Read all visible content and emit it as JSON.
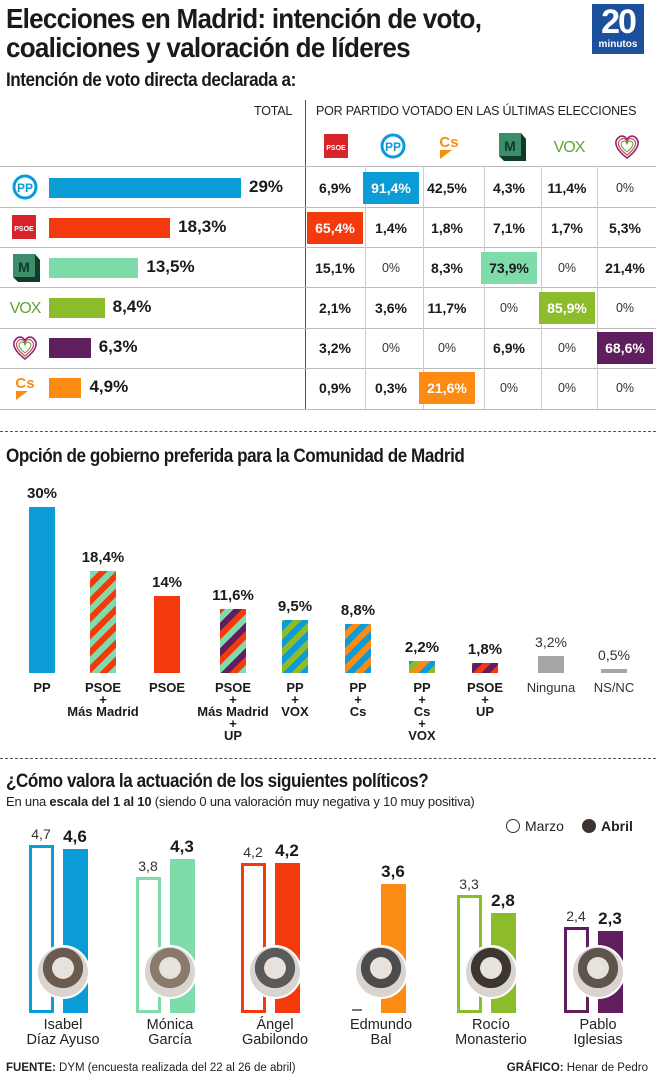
{
  "header": {
    "title_line1": "Elecciones en Madrid: intención de voto,",
    "title_line2": "coaliciones y valoración de líderes",
    "logo_number": "20",
    "logo_word": "minutos"
  },
  "colors": {
    "PP": "#0b9bd7",
    "PSOE": "#f43a0c",
    "MasMadrid": "#7ddcaa",
    "VOX": "#8cbb2c",
    "UP": "#5f1e5e",
    "Cs": "#fb8b12",
    "Ninguna": "#a6a6a6",
    "NSNC": "#a6a6a6"
  },
  "chart_data": [
    {
      "type": "table",
      "title": "Intención de voto directa declarada a:",
      "total_header": "TOTAL",
      "by_party_header": "POR PARTIDO VOTADO EN LAS ÚLTIMAS ELECCIONES",
      "columns": [
        {
          "party": "PSOE",
          "icon": "psoe-logo-icon"
        },
        {
          "party": "PP",
          "icon": "pp-logo-icon"
        },
        {
          "party": "Cs",
          "icon": "cs-logo-icon"
        },
        {
          "party": "Más Madrid",
          "icon": "mas-madrid-logo-icon"
        },
        {
          "party": "VOX",
          "icon": "vox-logo-icon"
        },
        {
          "party": "Unidas Podemos",
          "icon": "podemos-heart-logo-icon"
        }
      ],
      "rows": [
        {
          "party": "PP",
          "icon": "pp-logo-icon",
          "color_key": "PP",
          "total": 29,
          "total_label": "29%",
          "cells": [
            "6,9%",
            "91,4%",
            "42,5%",
            "4,3%",
            "11,4%",
            "0%"
          ],
          "highlight": 1
        },
        {
          "party": "PSOE",
          "icon": "psoe-logo-icon",
          "color_key": "PSOE",
          "total": 18.3,
          "total_label": "18,3%",
          "cells": [
            "65,4%",
            "1,4%",
            "1,8%",
            "7,1%",
            "1,7%",
            "5,3%"
          ],
          "highlight": 0
        },
        {
          "party": "Más Madrid",
          "icon": "mas-madrid-logo-icon",
          "color_key": "MasMadrid",
          "total": 13.5,
          "total_label": "13,5%",
          "cells": [
            "15,1%",
            "0%",
            "8,3%",
            "73,9%",
            "0%",
            "21,4%"
          ],
          "highlight": 3
        },
        {
          "party": "VOX",
          "icon": "vox-logo-icon",
          "color_key": "VOX",
          "total": 8.4,
          "total_label": "8,4%",
          "cells": [
            "2,1%",
            "3,6%",
            "11,7%",
            "0%",
            "85,9%",
            "0%"
          ],
          "highlight": 4
        },
        {
          "party": "Unidas Podemos",
          "icon": "podemos-heart-logo-icon",
          "color_key": "UP",
          "total": 6.3,
          "total_label": "6,3%",
          "cells": [
            "3,2%",
            "0%",
            "0%",
            "6,9%",
            "0%",
            "68,6%"
          ],
          "highlight": 5
        },
        {
          "party": "Cs",
          "icon": "cs-logo-icon",
          "color_key": "Cs",
          "total": 4.9,
          "total_label": "4,9%",
          "cells": [
            "0,9%",
            "0,3%",
            "21,6%",
            "0%",
            "0%",
            "0%"
          ],
          "highlight": 2
        }
      ]
    },
    {
      "type": "bar",
      "title": "Opción de gobierno preferida para la Comunidad de Madrid",
      "categories": [
        "PP",
        "PSOE\n+\nMás Madrid",
        "PSOE",
        "PSOE\n+\nMás Madrid\n+\nUP",
        "PP\n+\nVOX",
        "PP\n+\nCs",
        "PP\n+\nCs\n+\nVOX",
        "PSOE\n+\nUP",
        "Ninguna",
        "NS/NC"
      ],
      "values": [
        30,
        18.4,
        14,
        11.6,
        9.5,
        8.8,
        2.2,
        1.8,
        3.2,
        0.5
      ],
      "value_labels": [
        "30%",
        "18,4%",
        "14%",
        "11,6%",
        "9,5%",
        "8,8%",
        "2,2%",
        "1,8%",
        "3,2%",
        "0,5%"
      ],
      "stripes": [
        [
          "PP"
        ],
        [
          "MasMadrid",
          "PSOE"
        ],
        [
          "PSOE"
        ],
        [
          "MasMadrid",
          "PSOE",
          "UP"
        ],
        [
          "PP",
          "VOX"
        ],
        [
          "PP",
          "Cs"
        ],
        [
          "VOX",
          "PP",
          "Cs"
        ],
        [
          "PSOE",
          "UP"
        ],
        [
          "Ninguna"
        ],
        [
          "NSNC"
        ]
      ],
      "light": [
        false,
        false,
        false,
        false,
        false,
        false,
        false,
        false,
        true,
        true
      ],
      "xlabel": "",
      "ylabel": "",
      "ylim": [
        0,
        30
      ]
    },
    {
      "type": "bar",
      "title": "¿Cómo valora la actuación de los siguientes políticos?",
      "subtitle_pre": "En una ",
      "subtitle_bold": "escala del 1 al 10",
      "subtitle_post": " (siendo 0 una valoración muy negativa y 10 muy positiva)",
      "legend": [
        {
          "name": "Marzo",
          "style": "outline"
        },
        {
          "name": "Abril",
          "style": "filled"
        }
      ],
      "legend_placement": "top-right",
      "categories": [
        "Isabel\nDíaz Ayuso",
        "Mónica\nGarcía",
        "Ángel\nGabilondo",
        "Edmundo\nBal",
        "Rocío\nMonasterio",
        "Pablo\nIglesias"
      ],
      "color_keys": [
        "PP",
        "MasMadrid",
        "PSOE",
        "Cs",
        "VOX",
        "UP"
      ],
      "series": [
        {
          "name": "Marzo",
          "values": [
            4.7,
            3.8,
            4.2,
            null,
            3.3,
            2.4
          ],
          "labels": [
            "4,7",
            "3,8",
            "4,2",
            "–",
            "3,3",
            "2,4"
          ]
        },
        {
          "name": "Abril",
          "values": [
            4.6,
            4.3,
            4.2,
            3.6,
            2.8,
            2.3
          ],
          "labels": [
            "4,6",
            "4,3",
            "4,2",
            "3,6",
            "2,8",
            "2,3"
          ]
        }
      ],
      "ylim": [
        0,
        4.7
      ]
    }
  ],
  "footer": {
    "source_label": "FUENTE:",
    "source_text": " DYM (encuesta realizada del 22 al 26 de abril)",
    "credit_label": "GRÁFICO:",
    "credit_text": " Henar de Pedro"
  }
}
